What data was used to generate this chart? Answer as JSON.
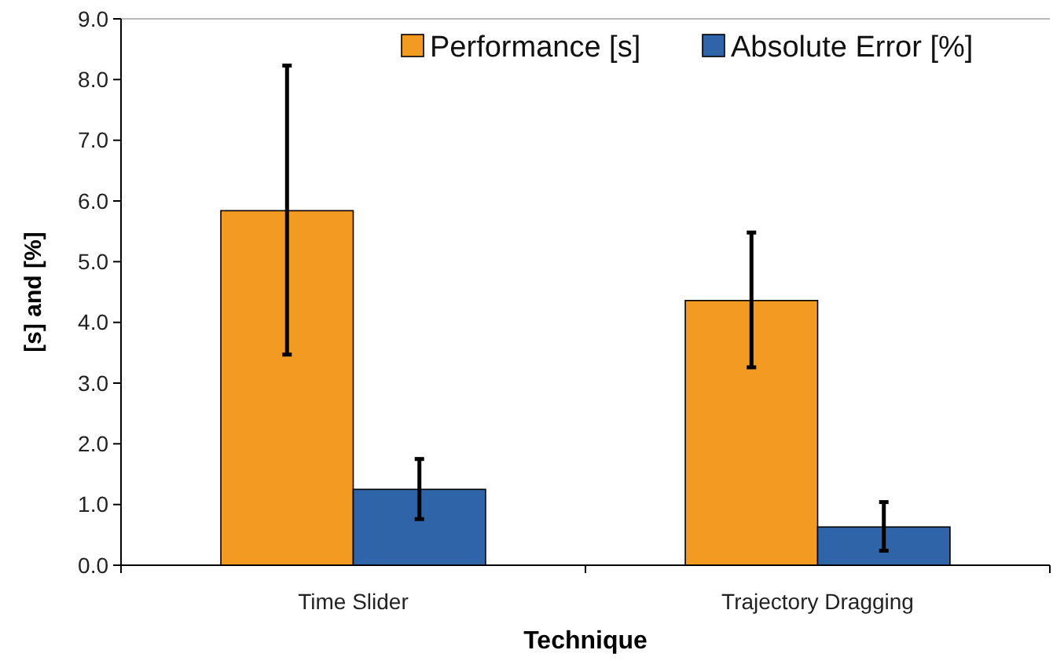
{
  "chart_data": {
    "type": "bar",
    "xlabel": "Technique",
    "ylabel": "[s] and [%]",
    "categories": [
      "Time Slider",
      "Trajectory Dragging"
    ],
    "ylim": [
      0,
      9
    ],
    "yticks": [
      {
        "value": 0,
        "label": "0.0"
      },
      {
        "value": 1,
        "label": "1.0"
      },
      {
        "value": 2,
        "label": "2.0"
      },
      {
        "value": 3,
        "label": "3.0"
      },
      {
        "value": 4,
        "label": "4.0"
      },
      {
        "value": 5,
        "label": "5.0"
      },
      {
        "value": 6,
        "label": "6.0"
      },
      {
        "value": 7,
        "label": "7.0"
      },
      {
        "value": 8,
        "label": "8.0"
      },
      {
        "value": 9,
        "label": "9.0"
      }
    ],
    "legend": "top right",
    "grid": false,
    "series": [
      {
        "name": "Performance [s]",
        "color": "#f29a21",
        "values": [
          5.84,
          4.36
        ],
        "errors": [
          [
            3.47,
            8.23
          ],
          [
            3.26,
            5.48
          ]
        ]
      },
      {
        "name": "Absolute Error [%]",
        "color": "#3064a8",
        "values": [
          1.25,
          0.63
        ],
        "errors": [
          [
            0.76,
            1.75
          ],
          [
            0.24,
            1.04
          ]
        ]
      }
    ]
  }
}
